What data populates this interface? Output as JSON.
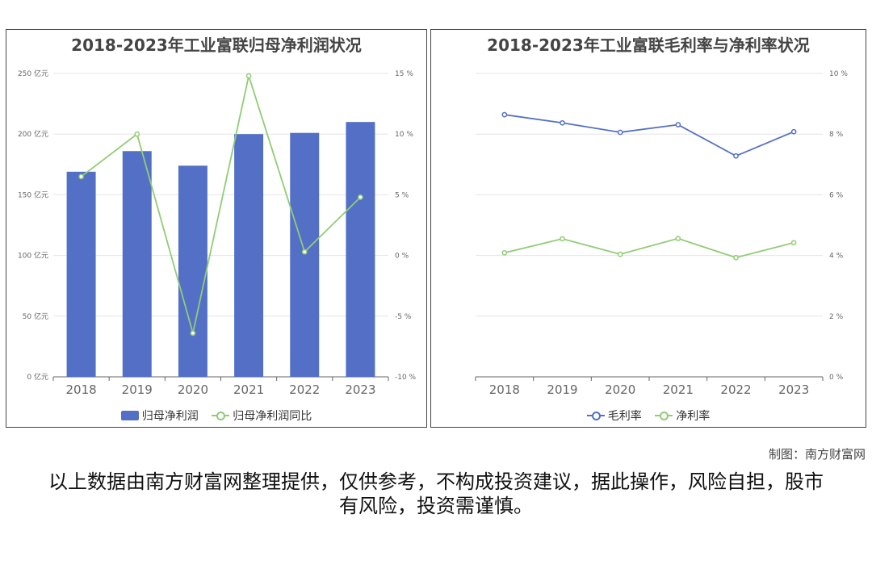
{
  "chart_data": [
    {
      "type": "bar",
      "title": "2018-2023年工业富联归母净利润状况",
      "categories": [
        "2018",
        "2019",
        "2020",
        "2021",
        "2022",
        "2023"
      ],
      "series": [
        {
          "name": "归母净利润",
          "kind": "bar",
          "axis": "left",
          "color": "#5470c6",
          "values": [
            169,
            186,
            174,
            200,
            201,
            210
          ]
        },
        {
          "name": "归母净利润同比",
          "kind": "line",
          "axis": "right",
          "color": "#91cc75",
          "values": [
            6.5,
            10.0,
            -6.4,
            14.8,
            0.3,
            4.8
          ]
        }
      ],
      "y_left": {
        "min": 0,
        "max": 250,
        "step": 50,
        "ticks": [
          "0 亿元",
          "50 亿元",
          "100 亿元",
          "150 亿元",
          "200 亿元",
          "250 亿元"
        ]
      },
      "y_right": {
        "min": -10,
        "max": 15,
        "step": 5,
        "ticks": [
          "-10 %",
          "-5 %",
          "0 %",
          "5 %",
          "10 %",
          "15 %"
        ]
      },
      "grid": true,
      "legend": "bottom"
    },
    {
      "type": "line",
      "title": "2018-2023年工业富联毛利率与净利率状况",
      "categories": [
        "2018",
        "2019",
        "2020",
        "2021",
        "2022",
        "2023"
      ],
      "series": [
        {
          "name": "毛利率",
          "kind": "line",
          "axis": "right",
          "color": "#5470c6",
          "values": [
            8.64,
            8.37,
            8.06,
            8.31,
            7.28,
            8.08
          ]
        },
        {
          "name": "净利率",
          "kind": "line",
          "axis": "right",
          "color": "#91cc75",
          "values": [
            4.09,
            4.55,
            4.04,
            4.56,
            3.93,
            4.42
          ]
        }
      ],
      "y_right": {
        "min": 0,
        "max": 10,
        "step": 2,
        "ticks": [
          "0 %",
          "2 %",
          "4 %",
          "6 %",
          "8 %",
          "10 %"
        ]
      },
      "grid": true,
      "legend": "bottom"
    }
  ],
  "credit": "制图：南方财富网",
  "disclaimer": "以上数据由南方财富网整理提供，仅供参考，不构成投资建议，据此操作，风险自担，股市有风险，投资需谨慎。"
}
